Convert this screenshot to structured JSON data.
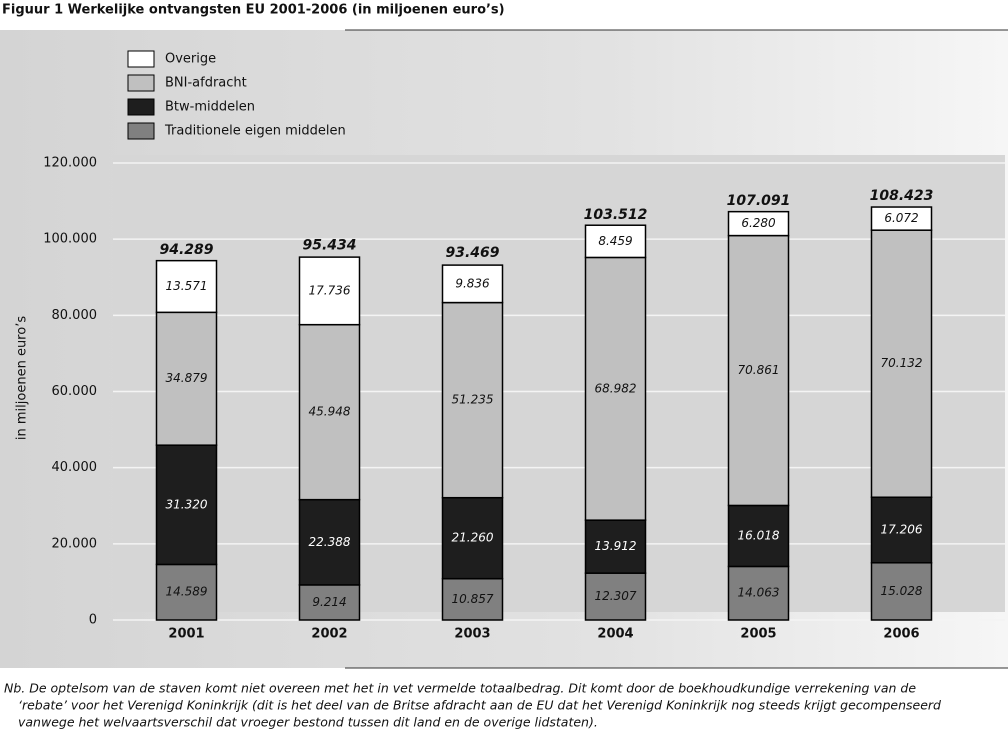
{
  "chart_data": {
    "type": "stacked-bar",
    "title": "Figuur 1 Werkelijke ontvangsten EU 2001-2006 (in miljoenen euro’s)",
    "y_label": "in miljoenen euro’s",
    "categories": [
      "2001",
      "2002",
      "2003",
      "2004",
      "2005",
      "2006"
    ],
    "series": [
      {
        "name": "Traditionele eigen middelen",
        "color": "#808080",
        "values": [
          14589,
          9214,
          10857,
          12307,
          14063,
          15028
        ],
        "value_labels": [
          "14.589",
          "9.214",
          "10.857",
          "12.307",
          "14.063",
          "15.028"
        ]
      },
      {
        "name": "Btw-middelen",
        "color": "#1e1e1e",
        "values": [
          31320,
          22388,
          21260,
          13912,
          16018,
          17206
        ],
        "value_labels": [
          "31.320",
          "22.388",
          "21.260",
          "13.912",
          "16.018",
          "17.206"
        ]
      },
      {
        "name": "BNI-afdracht",
        "color": "#c0c0c0",
        "values": [
          34879,
          45948,
          51235,
          68982,
          70861,
          70132
        ],
        "value_labels": [
          "34.879",
          "45.948",
          "51.235",
          "68.982",
          "70.861",
          "70.132"
        ]
      },
      {
        "name": "Overige",
        "color": "#ffffff",
        "values": [
          13571,
          17736,
          9836,
          8459,
          6280,
          6072
        ],
        "value_labels": [
          "13.571",
          "17.736",
          "9.836",
          "8.459",
          "6.280",
          "6.072"
        ]
      }
    ],
    "totals": [
      {
        "value": 94289,
        "label": "94.289"
      },
      {
        "value": 95434,
        "label": "95.434"
      },
      {
        "value": 93469,
        "label": "93.469"
      },
      {
        "value": 103512,
        "label": "103.512"
      },
      {
        "value": 107091,
        "label": "107.091"
      },
      {
        "value": 108423,
        "label": "108.423"
      }
    ],
    "ylim": [
      0,
      120000
    ],
    "yticks": [
      0,
      {
        "value": 20000,
        "label": "20.000"
      },
      {
        "value": 40000,
        "label": "40.000"
      },
      {
        "value": 60000,
        "label": "60.000"
      },
      {
        "value": 80000,
        "label": "80.000"
      },
      {
        "value": 100000,
        "label": "100.000"
      },
      {
        "value": 120000,
        "label": "120.000"
      }
    ],
    "grid": true,
    "note": [
      "Nb. De optelsom van de staven komt niet overeen met het in vet vermelde totaalbedrag. Dit komt door de boekhoudkundige verrekening van de",
      "‘rebate’ voor het Verenigd Koninkrijk (dit is het deel van de Britse afdracht aan de EU dat het Verenigd Koninkrijk nog steeds krijgt gecompenseerd",
      "vanwege het welvaartsverschil dat vroeger bestond tussen dit land en de overige lidstaten)."
    ]
  }
}
